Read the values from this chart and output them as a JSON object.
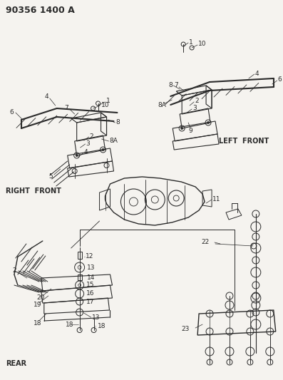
{
  "title": "90356 1400 A",
  "background_color": "#f5f3ef",
  "line_color": "#2a2a2a",
  "text_color": "#2a2a2a",
  "labels": {
    "left_front": "LEFT  FRONT",
    "right_front": "RIGHT  FRONT",
    "rear": "REAR"
  },
  "fig_width": 3.97,
  "fig_height": 5.33,
  "dpi": 100
}
